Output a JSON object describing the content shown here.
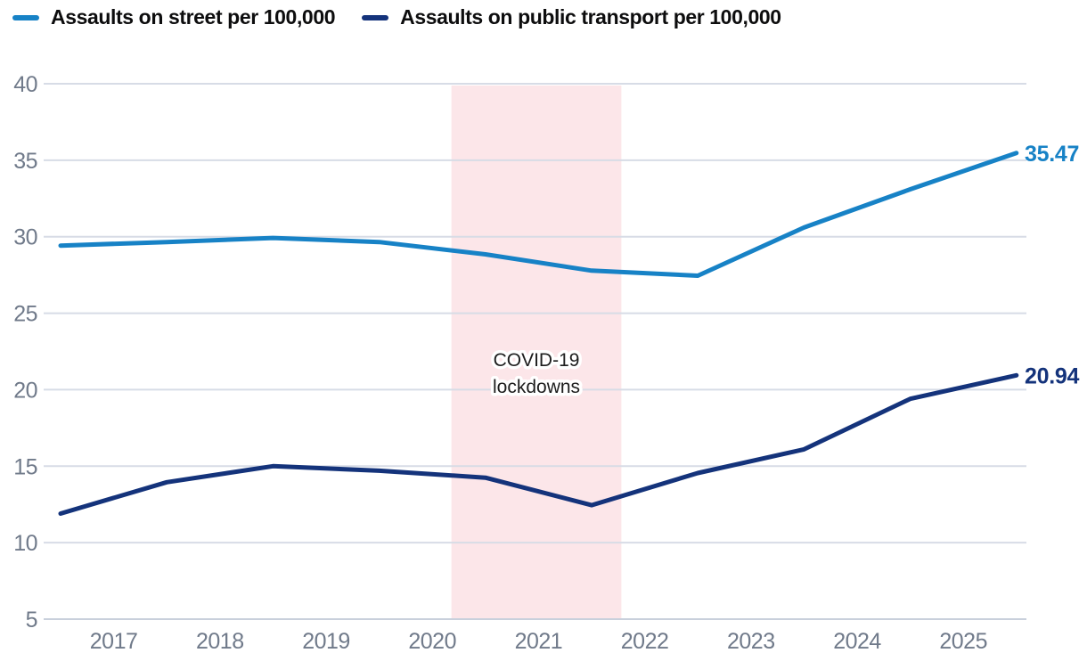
{
  "legend": {
    "items": [
      {
        "label": "Assaults on street per 100,000",
        "color": "#1782c6"
      },
      {
        "label": "Assaults on public transport per 100,000",
        "color": "#14337b"
      }
    ]
  },
  "chart_data": {
    "type": "line",
    "title": "",
    "xlabel": "",
    "ylabel": "",
    "x": [
      2016.5,
      2017.5,
      2018.5,
      2019.5,
      2020.5,
      2021.5,
      2022.5,
      2023.5,
      2024.5,
      2025.5
    ],
    "xtick_labels": [
      "2017",
      "2018",
      "2019",
      "2020",
      "2021",
      "2022",
      "2023",
      "2024",
      "2025"
    ],
    "yticks": [
      5,
      10,
      15,
      20,
      25,
      30,
      35,
      40
    ],
    "ylim": [
      5,
      40
    ],
    "grid": "horizontal",
    "legend_position": "top-left",
    "series": [
      {
        "name": "Assaults on street per 100,000",
        "color": "#1782c6",
        "values": [
          29.42,
          29.65,
          29.92,
          29.65,
          28.85,
          27.78,
          27.45,
          30.6,
          33.1,
          35.47
        ],
        "end_label": "35.47"
      },
      {
        "name": "Assaults on public transport per 100,000",
        "color": "#14337b",
        "values": [
          11.9,
          13.95,
          15.0,
          14.7,
          14.25,
          12.45,
          14.55,
          16.1,
          19.4,
          20.94
        ],
        "end_label": "20.94"
      }
    ],
    "annotation": {
      "label": "COVID-19 lockdowns",
      "lines": [
        "COVID-19",
        "lockdowns"
      ],
      "x_start": 2020.18,
      "x_end": 2021.78,
      "band_color": "#fce6e9",
      "text_color": "#1d1d1d"
    }
  },
  "colors": {
    "background": "#ffffff",
    "gridline": "#d7dce6",
    "baseline": "#c9d0dc",
    "tick_text": "#707a8a"
  }
}
